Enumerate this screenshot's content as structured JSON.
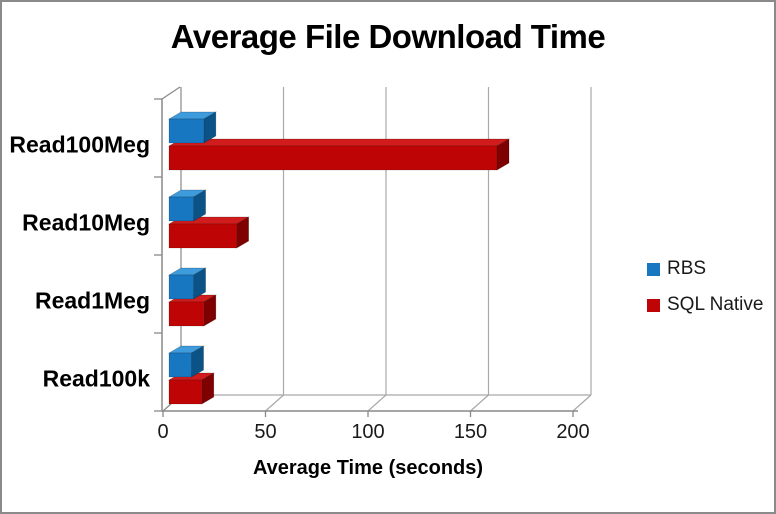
{
  "frame": {
    "border_color": "#8A8A8A",
    "background": "#FFFFFF"
  },
  "chart_data": {
    "type": "bar",
    "subtype": "3d-clustered-horizontal",
    "title": "Average File Download Time",
    "xlabel": "Average Time (seconds)",
    "ylabel": "",
    "categories": [
      "Read100Meg",
      "Read10Meg",
      "Read1Meg",
      "Read100k"
    ],
    "series": [
      {
        "name": "RBS",
        "values": [
          17,
          12,
          12,
          11
        ],
        "color": "#1777C0",
        "color_top": "#3E9BDC",
        "color_side": "#0B5287"
      },
      {
        "name": "SQL Native",
        "values": [
          160,
          33,
          17,
          16
        ],
        "color": "#BE0404",
        "color_top": "#D01C1C",
        "color_side": "#7E0000"
      }
    ],
    "xlim": [
      0,
      200
    ],
    "xticks": [
      "0",
      "50",
      "100",
      "150",
      "200"
    ],
    "grid": true,
    "grid_color": "#A9A9A9",
    "axis_color": "#898989",
    "legend_position": "right",
    "units": "seconds"
  }
}
